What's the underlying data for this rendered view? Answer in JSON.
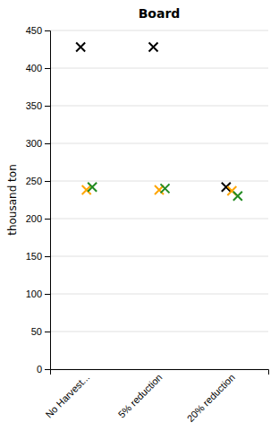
{
  "chart_data": {
    "type": "scatter",
    "title": "Board",
    "y_label": "thousand ton",
    "categories": [
      "No Harvest...",
      "5% reduction",
      "20% reduction"
    ],
    "series": [
      {
        "color": "#000000",
        "marker": "x",
        "values": [
          428,
          428,
          242
        ]
      },
      {
        "color": "#FFA500",
        "marker": "x",
        "values": [
          238,
          238,
          237
        ]
      },
      {
        "color": "#228B22",
        "marker": "x",
        "values": [
          242,
          240,
          230
        ]
      }
    ],
    "ylim": [
      0,
      450
    ],
    "yticks": [
      0,
      50,
      100,
      150,
      200,
      250,
      300,
      350,
      400,
      450
    ],
    "grid": true
  }
}
